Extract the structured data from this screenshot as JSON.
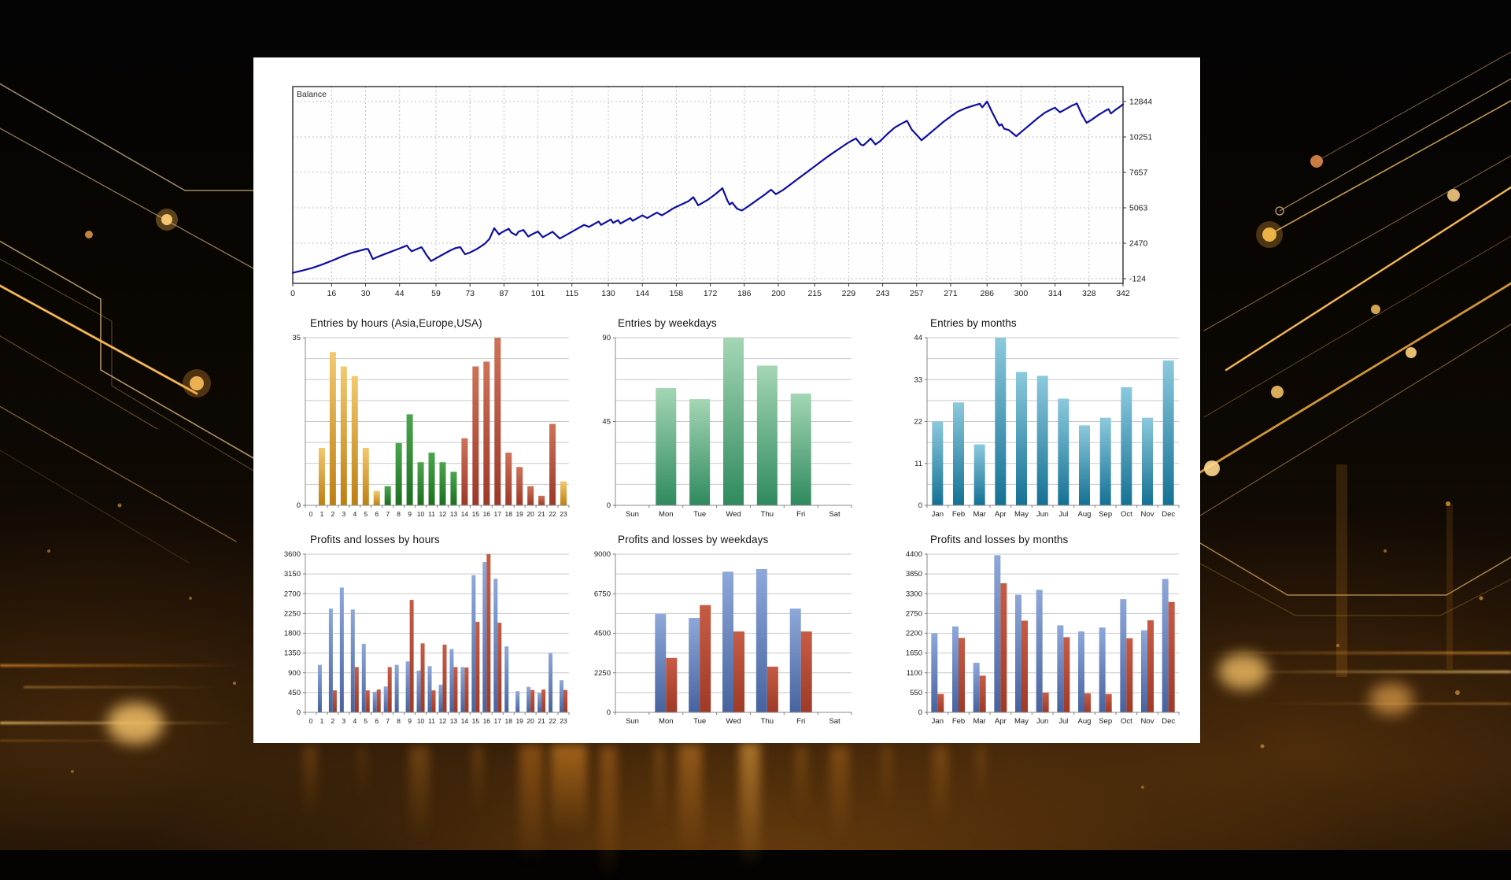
{
  "colors": {
    "balance_line": "#0e0ea2",
    "accent_gold": "#e8962e",
    "gradients": {
      "asia_gold": [
        "#f2c96f",
        "#bd7f12"
      ],
      "europe_green": [
        "#4aa64d",
        "#1d6e20"
      ],
      "usa_red": [
        "#cd7257",
        "#9c392a"
      ],
      "weekday_green": [
        "#a4d6b4",
        "#2f8a5e"
      ],
      "month_teal": [
        "#8cc9dd",
        "#147194"
      ],
      "profit_blue": [
        "#8ea8da",
        "#47639f"
      ],
      "loss_red": [
        "#c75c45",
        "#9e3a27"
      ]
    }
  },
  "chart_data": [
    {
      "id": "balance",
      "type": "line",
      "series_label": "Balance",
      "x_ticks": [
        0,
        16,
        30,
        44,
        59,
        73,
        87,
        101,
        115,
        130,
        144,
        158,
        172,
        186,
        200,
        215,
        229,
        243,
        257,
        271,
        286,
        300,
        314,
        328,
        342
      ],
      "y_ticks": [
        12844,
        10251,
        7657,
        5063,
        2470,
        -124
      ],
      "ylim": [
        -124,
        12844
      ],
      "xlim": [
        0,
        342
      ],
      "points": [
        [
          0,
          300
        ],
        [
          4,
          470
        ],
        [
          8,
          660
        ],
        [
          12,
          900
        ],
        [
          16,
          1180
        ],
        [
          20,
          1480
        ],
        [
          24,
          1750
        ],
        [
          27,
          1900
        ],
        [
          30,
          2040
        ],
        [
          31,
          2050
        ],
        [
          32,
          1690
        ],
        [
          33,
          1310
        ],
        [
          35,
          1470
        ],
        [
          38,
          1680
        ],
        [
          41,
          1890
        ],
        [
          44,
          2090
        ],
        [
          46,
          2230
        ],
        [
          47,
          2300
        ],
        [
          48,
          2060
        ],
        [
          49,
          1880
        ],
        [
          51,
          2030
        ],
        [
          53,
          2180
        ],
        [
          54,
          1930
        ],
        [
          55,
          1620
        ],
        [
          57,
          1160
        ],
        [
          59,
          1360
        ],
        [
          62,
          1660
        ],
        [
          65,
          1950
        ],
        [
          67,
          2110
        ],
        [
          69,
          2180
        ],
        [
          70,
          1910
        ],
        [
          71,
          1660
        ],
        [
          73,
          1790
        ],
        [
          76,
          2060
        ],
        [
          79,
          2420
        ],
        [
          81,
          2780
        ],
        [
          83,
          3570
        ],
        [
          85,
          3110
        ],
        [
          86,
          3260
        ],
        [
          89,
          3530
        ],
        [
          90,
          3260
        ],
        [
          92,
          3060
        ],
        [
          93,
          3310
        ],
        [
          95,
          3440
        ],
        [
          97,
          2960
        ],
        [
          99,
          3160
        ],
        [
          101,
          3330
        ],
        [
          103,
          2910
        ],
        [
          105,
          3110
        ],
        [
          107,
          3310
        ],
        [
          110,
          2810
        ],
        [
          113,
          3110
        ],
        [
          116,
          3410
        ],
        [
          119,
          3710
        ],
        [
          120,
          3810
        ],
        [
          122,
          3660
        ],
        [
          124,
          3860
        ],
        [
          126,
          4060
        ],
        [
          127,
          3810
        ],
        [
          129,
          4010
        ],
        [
          131,
          4210
        ],
        [
          132,
          3960
        ],
        [
          134,
          4160
        ],
        [
          135,
          3910
        ],
        [
          137,
          4110
        ],
        [
          139,
          4310
        ],
        [
          140,
          4110
        ],
        [
          142,
          4310
        ],
        [
          144,
          4510
        ],
        [
          146,
          4310
        ],
        [
          148,
          4510
        ],
        [
          150,
          4710
        ],
        [
          152,
          4510
        ],
        [
          154,
          4710
        ],
        [
          157,
          5050
        ],
        [
          160,
          5300
        ],
        [
          163,
          5550
        ],
        [
          165,
          5840
        ],
        [
          167,
          5250
        ],
        [
          169,
          5450
        ],
        [
          171,
          5650
        ],
        [
          174,
          6050
        ],
        [
          177,
          6500
        ],
        [
          179,
          5600
        ],
        [
          180,
          5300
        ],
        [
          181,
          5450
        ],
        [
          183,
          5000
        ],
        [
          185,
          4860
        ],
        [
          188,
          5220
        ],
        [
          191,
          5600
        ],
        [
          194,
          5980
        ],
        [
          197,
          6390
        ],
        [
          199,
          6060
        ],
        [
          202,
          6370
        ],
        [
          205,
          6770
        ],
        [
          208,
          7170
        ],
        [
          211,
          7570
        ],
        [
          214,
          7970
        ],
        [
          217,
          8370
        ],
        [
          220,
          8770
        ],
        [
          223,
          9140
        ],
        [
          226,
          9500
        ],
        [
          229,
          9860
        ],
        [
          232,
          10140
        ],
        [
          234,
          9700
        ],
        [
          235,
          9630
        ],
        [
          237,
          9950
        ],
        [
          238,
          10140
        ],
        [
          240,
          9700
        ],
        [
          242,
          9950
        ],
        [
          245,
          10480
        ],
        [
          248,
          10950
        ],
        [
          251,
          11250
        ],
        [
          253,
          11430
        ],
        [
          255,
          10780
        ],
        [
          257,
          10400
        ],
        [
          259,
          10010
        ],
        [
          262,
          10450
        ],
        [
          265,
          10900
        ],
        [
          268,
          11350
        ],
        [
          271,
          11750
        ],
        [
          274,
          12120
        ],
        [
          277,
          12350
        ],
        [
          280,
          12520
        ],
        [
          283,
          12680
        ],
        [
          284,
          12420
        ],
        [
          286,
          12844
        ],
        [
          288,
          12100
        ],
        [
          290,
          11400
        ],
        [
          291,
          11080
        ],
        [
          292,
          11180
        ],
        [
          293,
          10860
        ],
        [
          295,
          10750
        ],
        [
          296,
          10600
        ],
        [
          298,
          10310
        ],
        [
          301,
          10750
        ],
        [
          304,
          11200
        ],
        [
          307,
          11650
        ],
        [
          310,
          12050
        ],
        [
          313,
          12320
        ],
        [
          314,
          12390
        ],
        [
          316,
          12060
        ],
        [
          318,
          12250
        ],
        [
          321,
          12550
        ],
        [
          323,
          12700
        ],
        [
          325,
          11900
        ],
        [
          327,
          11290
        ],
        [
          329,
          11500
        ],
        [
          332,
          11880
        ],
        [
          335,
          12200
        ],
        [
          336,
          12290
        ],
        [
          337,
          11970
        ],
        [
          339,
          12250
        ],
        [
          341,
          12500
        ],
        [
          342,
          12640
        ]
      ]
    },
    {
      "id": "entries_hours",
      "type": "bar",
      "title": "Entries by hours (Asia,Europe,USA)",
      "categories": [
        "0",
        "1",
        "2",
        "3",
        "4",
        "5",
        "6",
        "7",
        "8",
        "9",
        "10",
        "11",
        "12",
        "13",
        "14",
        "15",
        "16",
        "17",
        "18",
        "19",
        "20",
        "21",
        "22",
        "23"
      ],
      "values": [
        0,
        12,
        32,
        29,
        27,
        12,
        3,
        4,
        13,
        19,
        9,
        11,
        9,
        7,
        14,
        29,
        30,
        35,
        11,
        8,
        4,
        2,
        17,
        5
      ],
      "bar_palette": [
        "asia_gold",
        "asia_gold",
        "asia_gold",
        "asia_gold",
        "asia_gold",
        "asia_gold",
        "asia_gold",
        "europe_green",
        "europe_green",
        "europe_green",
        "europe_green",
        "europe_green",
        "europe_green",
        "europe_green",
        "usa_red",
        "usa_red",
        "usa_red",
        "usa_red",
        "usa_red",
        "usa_red",
        "usa_red",
        "usa_red",
        "usa_red",
        "asia_gold"
      ],
      "y_ticks": [
        0,
        35
      ],
      "ymax": 35
    },
    {
      "id": "entries_weekdays",
      "type": "bar",
      "title": "Entries by weekdays",
      "categories": [
        "Sun",
        "Mon",
        "Tue",
        "Wed",
        "Thu",
        "Fri",
        "Sat"
      ],
      "values": [
        0,
        63,
        57,
        90,
        75,
        60,
        0
      ],
      "palette": "weekday_green",
      "y_ticks": [
        0,
        45,
        90
      ],
      "ymax": 90
    },
    {
      "id": "entries_months",
      "type": "bar",
      "title": "Entries by months",
      "categories": [
        "Jan",
        "Feb",
        "Mar",
        "Apr",
        "May",
        "Jun",
        "Jul",
        "Aug",
        "Sep",
        "Oct",
        "Nov",
        "Dec"
      ],
      "values": [
        22,
        27,
        16,
        44,
        35,
        34,
        28,
        21,
        23,
        31,
        23,
        38
      ],
      "palette": "month_teal",
      "y_ticks": [
        0,
        11,
        22,
        33,
        44
      ],
      "ymax": 44
    },
    {
      "id": "pl_hours",
      "type": "bar",
      "title": "Profits and losses by hours",
      "categories": [
        "0",
        "1",
        "2",
        "3",
        "4",
        "5",
        "6",
        "7",
        "8",
        "9",
        "10",
        "11",
        "12",
        "13",
        "14",
        "15",
        "16",
        "17",
        "18",
        "19",
        "20",
        "21",
        "22",
        "23"
      ],
      "series": [
        {
          "name": "profits",
          "palette": "profit_blue",
          "values": [
            0,
            1080,
            2360,
            2840,
            2340,
            1560,
            470,
            590,
            1080,
            1160,
            950,
            1050,
            630,
            1440,
            1030,
            3120,
            3420,
            3040,
            1500,
            480,
            580,
            440,
            1350,
            730
          ]
        },
        {
          "name": "losses",
          "palette": "loss_red",
          "values": [
            0,
            0,
            500,
            0,
            1030,
            500,
            520,
            1030,
            0,
            2560,
            1570,
            500,
            1540,
            1030,
            1020,
            2060,
            3600,
            2040,
            0,
            0,
            510,
            520,
            0,
            510
          ]
        }
      ],
      "y_ticks": [
        0,
        450,
        900,
        1350,
        1800,
        2250,
        2700,
        3150,
        3600
      ],
      "ymax": 3600
    },
    {
      "id": "pl_weekdays",
      "type": "bar",
      "title": "Profits and losses by weekdays",
      "categories": [
        "Sun",
        "Mon",
        "Tue",
        "Wed",
        "Thu",
        "Fri",
        "Sat"
      ],
      "series": [
        {
          "name": "profits",
          "palette": "profit_blue",
          "values": [
            0,
            5600,
            5370,
            8000,
            8150,
            5900,
            0
          ]
        },
        {
          "name": "losses",
          "palette": "loss_red",
          "values": [
            0,
            3100,
            6100,
            4600,
            2600,
            4600,
            0
          ]
        }
      ],
      "y_ticks": [
        0,
        2250,
        4500,
        6750,
        9000
      ],
      "ymax": 9000
    },
    {
      "id": "pl_months",
      "type": "bar",
      "title": "Profits and losses by months",
      "categories": [
        "Jan",
        "Feb",
        "Mar",
        "Apr",
        "May",
        "Jun",
        "Jul",
        "Aug",
        "Sep",
        "Oct",
        "Nov",
        "Dec"
      ],
      "series": [
        {
          "name": "profits",
          "palette": "profit_blue",
          "values": [
            2200,
            2390,
            1380,
            4370,
            3270,
            3410,
            2420,
            2250,
            2360,
            3150,
            2280,
            3710
          ]
        },
        {
          "name": "losses",
          "palette": "loss_red",
          "values": [
            510,
            2070,
            1020,
            3590,
            2550,
            550,
            2090,
            530,
            510,
            2060,
            2560,
            3070
          ]
        }
      ],
      "y_ticks": [
        0,
        550,
        1100,
        1650,
        2200,
        2750,
        3300,
        3850,
        4400
      ],
      "ymax": 4400
    }
  ]
}
